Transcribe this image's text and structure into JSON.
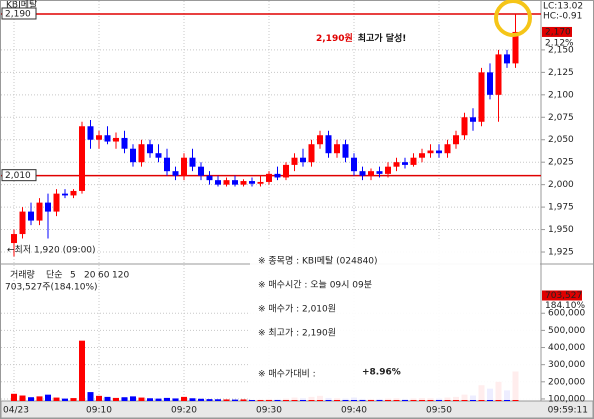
{
  "chart_data": {
    "type": "candlestick",
    "title": "KBI메탈",
    "categories": [
      "04/23",
      null,
      null,
      null,
      null,
      null,
      null,
      null,
      null,
      null,
      "09:10",
      null,
      null,
      null,
      null,
      null,
      null,
      null,
      null,
      null,
      "09:20",
      null,
      null,
      null,
      null,
      null,
      null,
      null,
      null,
      null,
      "09:30",
      null,
      null,
      null,
      null,
      null,
      null,
      null,
      null,
      null,
      "09:40",
      null,
      null,
      null,
      null,
      null,
      null,
      null,
      null,
      null,
      "09:50",
      null,
      null,
      null,
      null,
      null,
      null,
      null,
      null,
      null
    ],
    "open": [
      1935,
      1945,
      1970,
      1960,
      1980,
      1970,
      1990,
      1988,
      1993,
      2065,
      2050,
      2055,
      2048,
      2052,
      2040,
      2025,
      2045,
      2035,
      2030,
      2015,
      2010,
      2030,
      2020,
      2010,
      2005,
      2000,
      2005,
      2000,
      2004,
      2001,
      2003,
      2012,
      2008,
      2022,
      2030,
      2025,
      2045,
      2055,
      2035,
      2045,
      2030,
      2015,
      2010,
      2015,
      2012,
      2020,
      2025,
      2022,
      2030,
      2035,
      2038,
      2035,
      2045,
      2055,
      2075,
      2070,
      2125,
      2100,
      2145,
      2135
    ],
    "high": [
      1950,
      1975,
      1980,
      1985,
      1990,
      1995,
      1995,
      1995,
      2070,
      2072,
      2060,
      2065,
      2058,
      2060,
      2045,
      2050,
      2050,
      2045,
      2040,
      2020,
      2035,
      2040,
      2025,
      2015,
      2010,
      2008,
      2010,
      2006,
      2008,
      2010,
      2015,
      2020,
      2025,
      2035,
      2040,
      2050,
      2060,
      2060,
      2050,
      2050,
      2035,
      2020,
      2018,
      2020,
      2025,
      2030,
      2030,
      2035,
      2040,
      2045,
      2045,
      2050,
      2060,
      2080,
      2085,
      2130,
      2135,
      2150,
      2150,
      2190
    ],
    "low": [
      1920,
      1940,
      1955,
      1955,
      1940,
      1965,
      1985,
      1985,
      1990,
      2040,
      2040,
      2045,
      2040,
      2035,
      2020,
      2020,
      2030,
      2025,
      2010,
      2005,
      2005,
      2015,
      2005,
      2000,
      1998,
      1998,
      1998,
      1998,
      1998,
      1998,
      2000,
      2005,
      2005,
      2015,
      2020,
      2020,
      2040,
      2030,
      2030,
      2025,
      2010,
      2005,
      2005,
      2008,
      2008,
      2015,
      2018,
      2020,
      2025,
      2030,
      2030,
      2030,
      2040,
      2050,
      2060,
      2065,
      2095,
      2070,
      2130,
      2130
    ],
    "close": [
      1945,
      1970,
      1960,
      1980,
      1970,
      1990,
      1988,
      1993,
      2065,
      2050,
      2055,
      2048,
      2052,
      2040,
      2025,
      2045,
      2035,
      2030,
      2015,
      2010,
      2030,
      2020,
      2010,
      2005,
      2000,
      2005,
      2000,
      2004,
      2001,
      2003,
      2012,
      2008,
      2022,
      2030,
      2025,
      2045,
      2055,
      2035,
      2045,
      2030,
      2015,
      2010,
      2015,
      2012,
      2020,
      2025,
      2022,
      2030,
      2035,
      2038,
      2035,
      2045,
      2055,
      2075,
      2070,
      2125,
      2100,
      2145,
      2135,
      2170
    ],
    "volume": [
      130000,
      120000,
      110000,
      115000,
      125000,
      108000,
      102000,
      105000,
      440000,
      140000,
      118000,
      112000,
      106000,
      110000,
      115000,
      108000,
      104000,
      102000,
      106000,
      103000,
      112000,
      104000,
      101000,
      99000,
      98000,
      97000,
      96000,
      97000,
      95000,
      96000,
      100000,
      98000,
      102000,
      108000,
      104000,
      112000,
      118000,
      106000,
      104000,
      102000,
      108000,
      100000,
      99000,
      100000,
      102000,
      104000,
      100000,
      103000,
      105000,
      104000,
      102000,
      108000,
      112000,
      125000,
      120000,
      180000,
      160000,
      200000,
      150000,
      260000
    ],
    "up_color": "#ff0000",
    "down_color": "#0000ff",
    "ylim": [
      1915,
      2200
    ],
    "yticks": [
      {
        "value": 2150,
        "label": "2,150"
      },
      {
        "value": 2125,
        "label": "2,125"
      },
      {
        "value": 2100,
        "label": "2,100"
      },
      {
        "value": 2075,
        "label": "2,075"
      },
      {
        "value": 2050,
        "label": "2,050"
      },
      {
        "value": 2025,
        "label": "2,025"
      },
      {
        "value": 2000,
        "label": "2,000"
      },
      {
        "value": 1975,
        "label": "1,975"
      },
      {
        "value": 1950,
        "label": "1,950"
      },
      {
        "value": 1925,
        "label": "1,925"
      }
    ],
    "reference_lines": [
      {
        "value": 2190,
        "label": "2,190"
      },
      {
        "value": 2010,
        "label": "2,010"
      }
    ],
    "last_price": {
      "value": 2170,
      "label": "2,170"
    },
    "last_change": "2.12%",
    "lc": "LC:13.02",
    "hc": "HC:-0.91",
    "vol_lim": [
      88000,
      864000
    ],
    "vol_ticks": [
      {
        "value": 600000,
        "label": "600,000"
      },
      {
        "value": 500000,
        "label": "500,000"
      },
      {
        "value": 400000,
        "label": "400,000"
      },
      {
        "value": 300000,
        "label": "300,000"
      },
      {
        "value": 200000,
        "label": "200,000"
      },
      {
        "value": 100000,
        "label": "100,000"
      }
    ],
    "last_volume": {
      "value": 703527,
      "label": "703,527"
    },
    "last_volume_ratio": "184.10%",
    "volume_legend": {
      "name": "거래량",
      "type": "단순",
      "periods": [
        "5",
        "20",
        "60",
        "120"
      ],
      "summary": "703,527주(184.10%)"
    },
    "current_time": "09:59:11",
    "grid": true,
    "low_annotation": "←최저 1,920 (09:00)",
    "high_annotation": {
      "price": "2,190원",
      "text": "최고가 달성!"
    },
    "info": {
      "lines": [
        "※ 종목명 : KBI메탈 (024840)",
        "※ 매수시간 : 오늘 09시 09분",
        "※ 매수가 : 2,010원",
        "※ 최고가 : 2,190원"
      ],
      "compare_label": "※ 매수가대비 :",
      "compare_value": "+8.96%"
    }
  }
}
